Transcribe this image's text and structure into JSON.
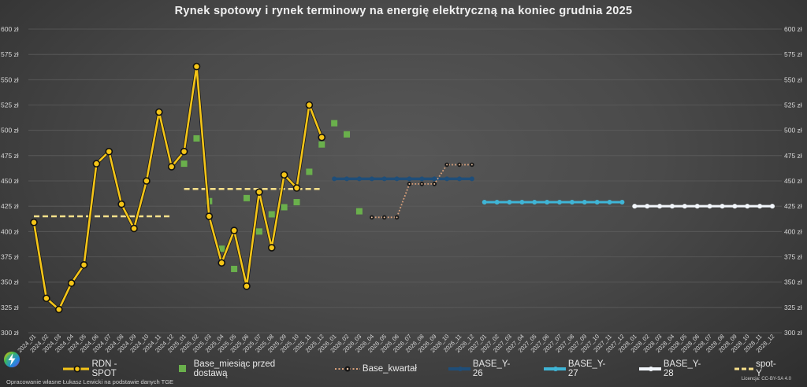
{
  "title": "Rynek spotowy i rynek terminowy na energię elektryczną na koniec grudnia 2025",
  "footer": {
    "source": "Opracowanie własne Łukasz Lewicki na podstawie danych TGE",
    "license": "Licencja: CC-BY-SA 4.0"
  },
  "logo": {
    "icon": "lightning-bolt-icon"
  },
  "colors": {
    "rdn_spot": "#f5c518",
    "base_month": "#6ab04c",
    "base_quarter": "#d9a07a",
    "base_y26": "#1f4e79",
    "base_y27": "#3fb5d6",
    "base_y28": "#f2f6fb",
    "spot_y": "#f7e08a",
    "grid": "#5c5c5c",
    "axis_text": "#d8d8d8"
  },
  "chart_data": {
    "type": "line",
    "title": "Rynek spotowy i rynek terminowy na energię elektryczną na koniec grudnia 2025",
    "xlabel": "",
    "ylabel": "",
    "ylim": [
      300,
      600
    ],
    "y_ticks": [
      "300 zł",
      "325 zł",
      "350 zł",
      "375 zł",
      "400 zł",
      "425 zł",
      "450 zł",
      "475 zł",
      "500 zł",
      "525 zł",
      "550 zł",
      "575 zł",
      "600 zł"
    ],
    "y_tick_values": [
      300,
      325,
      350,
      375,
      400,
      425,
      450,
      475,
      500,
      525,
      550,
      575,
      600
    ],
    "secondary_y_axis": true,
    "grid": true,
    "legend_position": "bottom",
    "categories": [
      "2024_01",
      "2024_02",
      "2024_03",
      "2024_04",
      "2024_05",
      "2024_06",
      "2024_07",
      "2024_08",
      "2024_09",
      "2024_10",
      "2024_11",
      "2024_12",
      "2025_01",
      "2025_02",
      "2025_03",
      "2025_04",
      "2025_05",
      "2025_06",
      "2025_07",
      "2025_08",
      "2025_09",
      "2025_10",
      "2025_11",
      "2025_12",
      "2026_01",
      "2026_02",
      "2026_03",
      "2026_04",
      "2026_05",
      "2026_06",
      "2026_07",
      "2026_08",
      "2026_09",
      "2026_10",
      "2026_11",
      "2026_12",
      "2027_01",
      "2027_02",
      "2027_03",
      "2027_04",
      "2027_05",
      "2027_06",
      "2027_07",
      "2027_08",
      "2027_09",
      "2027_10",
      "2027_11",
      "2027_12",
      "2028_01",
      "2028_02",
      "2028_03",
      "2028_04",
      "2028_05",
      "2028_06",
      "2028_07",
      "2028_08",
      "2028_09",
      "2028_10",
      "2028_11",
      "2028_12"
    ],
    "series": [
      {
        "name": "RDN - SPOT",
        "style": "line-marker",
        "values": [
          409,
          334,
          323,
          349,
          367,
          467,
          479,
          427,
          403,
          450,
          518,
          464,
          479,
          563,
          415,
          369,
          401,
          346,
          439,
          384,
          456,
          443,
          525,
          493,
          null,
          null,
          null,
          null,
          null,
          null,
          null,
          null,
          null,
          null,
          null,
          null,
          null,
          null,
          null,
          null,
          null,
          null,
          null,
          null,
          null,
          null,
          null,
          null,
          null,
          null,
          null,
          null,
          null,
          null,
          null,
          null,
          null,
          null,
          null,
          null
        ]
      },
      {
        "name": "Base_miesiąc przed dostawą",
        "style": "square-marker",
        "values": [
          null,
          null,
          null,
          null,
          null,
          null,
          null,
          null,
          null,
          null,
          null,
          null,
          467,
          492,
          430,
          383,
          363,
          433,
          400,
          417,
          424,
          429,
          459,
          486,
          507,
          496,
          420,
          null,
          null,
          null,
          null,
          null,
          null,
          null,
          null,
          null,
          null,
          null,
          null,
          null,
          null,
          null,
          null,
          null,
          null,
          null,
          null,
          null,
          null,
          null,
          null,
          null,
          null,
          null,
          null,
          null,
          null,
          null,
          null,
          null
        ]
      },
      {
        "name": "Base_kwartał",
        "style": "dotted-marker",
        "values": [
          null,
          null,
          null,
          null,
          null,
          null,
          null,
          null,
          null,
          null,
          null,
          null,
          null,
          null,
          null,
          null,
          null,
          null,
          null,
          null,
          null,
          null,
          null,
          null,
          null,
          null,
          null,
          414,
          414,
          414,
          447,
          447,
          447,
          466,
          466,
          466,
          null,
          null,
          null,
          null,
          null,
          null,
          null,
          null,
          null,
          null,
          null,
          null,
          null,
          null,
          null,
          null,
          null,
          null,
          null,
          null,
          null,
          null,
          null,
          null
        ]
      },
      {
        "name": "BASE_Y-26",
        "style": "line-marker",
        "values": [
          null,
          null,
          null,
          null,
          null,
          null,
          null,
          null,
          null,
          null,
          null,
          null,
          null,
          null,
          null,
          null,
          null,
          null,
          null,
          null,
          null,
          null,
          null,
          null,
          452,
          452,
          452,
          452,
          452,
          452,
          452,
          452,
          452,
          452,
          452,
          452,
          null,
          null,
          null,
          null,
          null,
          null,
          null,
          null,
          null,
          null,
          null,
          null,
          null,
          null,
          null,
          null,
          null,
          null,
          null,
          null,
          null,
          null,
          null,
          null
        ]
      },
      {
        "name": "BASE_Y-27",
        "style": "line-marker",
        "values": [
          null,
          null,
          null,
          null,
          null,
          null,
          null,
          null,
          null,
          null,
          null,
          null,
          null,
          null,
          null,
          null,
          null,
          null,
          null,
          null,
          null,
          null,
          null,
          null,
          null,
          null,
          null,
          null,
          null,
          null,
          null,
          null,
          null,
          null,
          null,
          null,
          429,
          429,
          429,
          429,
          429,
          429,
          429,
          429,
          429,
          429,
          429,
          429,
          null,
          null,
          null,
          null,
          null,
          null,
          null,
          null,
          null,
          null,
          null,
          null
        ]
      },
      {
        "name": "BASE_Y-28",
        "style": "line-marker",
        "values": [
          null,
          null,
          null,
          null,
          null,
          null,
          null,
          null,
          null,
          null,
          null,
          null,
          null,
          null,
          null,
          null,
          null,
          null,
          null,
          null,
          null,
          null,
          null,
          null,
          null,
          null,
          null,
          null,
          null,
          null,
          null,
          null,
          null,
          null,
          null,
          null,
          null,
          null,
          null,
          null,
          null,
          null,
          null,
          null,
          null,
          null,
          null,
          null,
          425,
          425,
          425,
          425,
          425,
          425,
          425,
          425,
          425,
          425,
          425,
          425
        ]
      },
      {
        "name": "spot-Y",
        "style": "dashed",
        "values": [
          415,
          415,
          415,
          415,
          415,
          415,
          415,
          415,
          415,
          415,
          415,
          415,
          442,
          442,
          442,
          442,
          442,
          442,
          442,
          442,
          442,
          442,
          442,
          442,
          null,
          null,
          null,
          null,
          null,
          null,
          null,
          null,
          null,
          null,
          null,
          null,
          null,
          null,
          null,
          null,
          null,
          null,
          null,
          null,
          null,
          null,
          null,
          null,
          null,
          null,
          null,
          null,
          null,
          null,
          null,
          null,
          null,
          null,
          null,
          null
        ]
      }
    ]
  },
  "legend": [
    {
      "label": "RDN - SPOT"
    },
    {
      "label": "Base_miesiąc przed dostawą"
    },
    {
      "label": "Base_kwartał"
    },
    {
      "label": "BASE_Y-26"
    },
    {
      "label": "BASE_Y-27"
    },
    {
      "label": "BASE_Y-28"
    },
    {
      "label": "spot-Y"
    }
  ]
}
